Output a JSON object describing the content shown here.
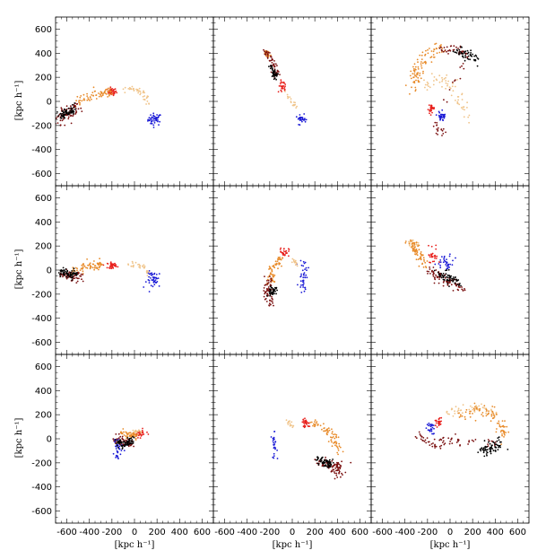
{
  "figure": {
    "xlabel": "[kpc h⁻¹]",
    "ylabel": "[kpc h⁻¹]",
    "xlim": [
      -700,
      700
    ],
    "ylim": [
      -700,
      700
    ],
    "xticks": [
      -600,
      -400,
      -200,
      0,
      200,
      400,
      600
    ],
    "yticks": [
      -600,
      -400,
      -200,
      0,
      200,
      400,
      600
    ],
    "rows": 3,
    "cols": 3
  },
  "chart_data": {
    "type": "scatter",
    "xlabel": "[kpc h⁻¹]",
    "ylabel": "[kpc h⁻¹]",
    "xlim": [
      -700,
      700
    ],
    "ylim": [
      -700,
      700
    ],
    "grid": false,
    "colors": {
      "blue": "#1a1ad6",
      "red": "#e8201c",
      "orange": "#e88b2a",
      "peach": "#f0c48a",
      "dark_red": "#7a1010",
      "black": "#000000"
    },
    "panels": [
      {
        "row": 0,
        "col": 0,
        "clusters": [
          {
            "color": "blue",
            "cx": 180,
            "cy": -150,
            "sx": 30,
            "sy": 25,
            "n": 45
          },
          {
            "color": "red",
            "cx": -200,
            "cy": 80,
            "sx": 20,
            "sy": 15,
            "n": 40
          },
          {
            "color": "peach",
            "path": [
              [
                -100,
                100
              ],
              [
                0,
                110
              ],
              [
                80,
                60
              ],
              [
                130,
                -30
              ]
            ],
            "spread": 12,
            "n": 45
          },
          {
            "color": "orange",
            "path": [
              [
                -500,
                0
              ],
              [
                -400,
                40
              ],
              [
                -300,
                60
              ],
              [
                -200,
                80
              ]
            ],
            "spread": 18,
            "n": 70
          },
          {
            "color": "dark_red",
            "path": [
              [
                -680,
                -160
              ],
              [
                -620,
                -120
              ],
              [
                -560,
                -80
              ],
              [
                -500,
                -40
              ]
            ],
            "spread": 25,
            "n": 70
          },
          {
            "color": "black",
            "path": [
              [
                -650,
                -110
              ],
              [
                -600,
                -90
              ],
              [
                -540,
                -70
              ]
            ],
            "spread": 20,
            "n": 60
          }
        ]
      },
      {
        "row": 0,
        "col": 1,
        "clusters": [
          {
            "color": "blue",
            "cx": 80,
            "cy": -150,
            "sx": 22,
            "sy": 15,
            "n": 30
          },
          {
            "color": "red",
            "cx": -90,
            "cy": 130,
            "sx": 18,
            "sy": 20,
            "n": 25
          },
          {
            "color": "peach",
            "path": [
              [
                -60,
                80
              ],
              [
                0,
                0
              ],
              [
                40,
                -60
              ]
            ],
            "spread": 10,
            "n": 20
          },
          {
            "color": "orange",
            "path": [
              [
                -240,
                420
              ],
              [
                -210,
                380
              ]
            ],
            "spread": 10,
            "n": 25
          },
          {
            "color": "dark_red",
            "path": [
              [
                -230,
                410
              ],
              [
                -180,
                320
              ],
              [
                -140,
                220
              ]
            ],
            "spread": 15,
            "n": 60
          },
          {
            "color": "black",
            "path": [
              [
                -190,
                300
              ],
              [
                -170,
                240
              ],
              [
                -150,
                200
              ]
            ],
            "spread": 12,
            "n": 40
          }
        ]
      },
      {
        "row": 0,
        "col": 2,
        "clusters": [
          {
            "color": "blue",
            "cx": -70,
            "cy": -120,
            "sx": 18,
            "sy": 22,
            "n": 35
          },
          {
            "color": "red",
            "cx": -170,
            "cy": -60,
            "sx": 15,
            "sy": 18,
            "n": 30
          },
          {
            "color": "peach",
            "path": [
              [
                -250,
                100
              ],
              [
                -100,
                200
              ],
              [
                50,
                120
              ],
              [
                150,
                -150
              ]
            ],
            "spread": 25,
            "n": 60
          },
          {
            "color": "orange",
            "path": [
              [
                -330,
                100
              ],
              [
                -300,
                250
              ],
              [
                -200,
                380
              ],
              [
                -100,
                450
              ]
            ],
            "spread": 30,
            "n": 90
          },
          {
            "color": "dark_red",
            "path": [
              [
                -100,
                430
              ],
              [
                50,
                430
              ],
              [
                150,
                380
              ],
              [
                -150,
                -180
              ],
              [
                -50,
                -270
              ]
            ],
            "spread": 18,
            "n": 70
          },
          {
            "color": "black",
            "path": [
              [
                50,
                420
              ],
              [
                150,
                380
              ],
              [
                250,
                350
              ]
            ],
            "spread": 25,
            "n": 50
          }
        ]
      },
      {
        "row": 1,
        "col": 0,
        "clusters": [
          {
            "color": "blue",
            "cx": 180,
            "cy": -80,
            "sx": 35,
            "sy": 35,
            "n": 45
          },
          {
            "color": "red",
            "cx": -200,
            "cy": 40,
            "sx": 20,
            "sy": 12,
            "n": 35
          },
          {
            "color": "peach",
            "path": [
              [
                -50,
                50
              ],
              [
                50,
                40
              ],
              [
                130,
                -20
              ]
            ],
            "spread": 12,
            "n": 30
          },
          {
            "color": "orange",
            "path": [
              [
                -550,
                0
              ],
              [
                -400,
                30
              ],
              [
                -300,
                40
              ]
            ],
            "spread": 18,
            "n": 70
          },
          {
            "color": "dark_red",
            "path": [
              [
                -650,
                -30
              ],
              [
                -560,
                -60
              ],
              [
                -480,
                -50
              ]
            ],
            "spread": 20,
            "n": 60
          },
          {
            "color": "black",
            "path": [
              [
                -650,
                -20
              ],
              [
                -580,
                -40
              ],
              [
                -520,
                -40
              ]
            ],
            "spread": 18,
            "n": 60
          }
        ]
      },
      {
        "row": 1,
        "col": 1,
        "clusters": [
          {
            "color": "blue",
            "cx": 100,
            "cy": -40,
            "sx": 20,
            "sy": 70,
            "n": 40
          },
          {
            "color": "red",
            "cx": -70,
            "cy": 150,
            "sx": 20,
            "sy": 18,
            "n": 25
          },
          {
            "color": "peach",
            "path": [
              [
                0,
                100
              ],
              [
                40,
                40
              ]
            ],
            "spread": 10,
            "n": 15
          },
          {
            "color": "orange",
            "path": [
              [
                -110,
                100
              ],
              [
                -180,
                0
              ],
              [
                -200,
                -100
              ]
            ],
            "spread": 18,
            "n": 60
          },
          {
            "color": "dark_red",
            "path": [
              [
                -200,
                -80
              ],
              [
                -220,
                -200
              ],
              [
                -190,
                -280
              ]
            ],
            "spread": 18,
            "n": 60
          },
          {
            "color": "black",
            "path": [
              [
                -200,
                -200
              ],
              [
                -170,
                -170
              ],
              [
                -140,
                -160
              ]
            ],
            "spread": 15,
            "n": 40
          }
        ]
      },
      {
        "row": 1,
        "col": 2,
        "clusters": [
          {
            "color": "blue",
            "cx": -40,
            "cy": 60,
            "sx": 35,
            "sy": 30,
            "n": 35
          },
          {
            "color": "red",
            "cx": -150,
            "cy": 120,
            "sx": 25,
            "sy": 30,
            "n": 30
          },
          {
            "color": "peach",
            "path": [
              [
                -350,
                240
              ],
              [
                -300,
                200
              ]
            ],
            "spread": 15,
            "n": 20
          },
          {
            "color": "orange",
            "path": [
              [
                -350,
                230
              ],
              [
                -280,
                150
              ],
              [
                -220,
                50
              ]
            ],
            "spread": 22,
            "n": 70
          },
          {
            "color": "dark_red",
            "path": [
              [
                -200,
                0
              ],
              [
                -50,
                -80
              ],
              [
                100,
                -140
              ]
            ],
            "spread": 25,
            "n": 80
          },
          {
            "color": "black",
            "path": [
              [
                -100,
                -30
              ],
              [
                0,
                -70
              ],
              [
                80,
                -100
              ]
            ],
            "spread": 20,
            "n": 60
          }
        ]
      },
      {
        "row": 2,
        "col": 0,
        "clusters": [
          {
            "color": "blue",
            "cx": -150,
            "cy": -80,
            "sx": 25,
            "sy": 40,
            "n": 40
          },
          {
            "color": "red",
            "cx": 50,
            "cy": 40,
            "sx": 25,
            "sy": 12,
            "n": 35
          },
          {
            "color": "peach",
            "path": [
              [
                -30,
                60
              ],
              [
                50,
                60
              ]
            ],
            "spread": 10,
            "n": 15
          },
          {
            "color": "orange",
            "path": [
              [
                -100,
                40
              ],
              [
                -30,
                30
              ],
              [
                20,
                30
              ]
            ],
            "spread": 15,
            "n": 50
          },
          {
            "color": "dark_red",
            "path": [
              [
                -170,
                0
              ],
              [
                -100,
                -30
              ],
              [
                -40,
                -30
              ]
            ],
            "spread": 20,
            "n": 50
          },
          {
            "color": "black",
            "path": [
              [
                -150,
                -40
              ],
              [
                -80,
                -40
              ],
              [
                -20,
                -20
              ]
            ],
            "spread": 20,
            "n": 70
          }
        ]
      },
      {
        "row": 2,
        "col": 1,
        "clusters": [
          {
            "color": "blue",
            "cx": -160,
            "cy": -60,
            "sx": 12,
            "sy": 50,
            "n": 25
          },
          {
            "color": "red",
            "cx": 120,
            "cy": 130,
            "sx": 18,
            "sy": 18,
            "n": 30
          },
          {
            "color": "peach",
            "path": [
              [
                -40,
                150
              ],
              [
                0,
                100
              ]
            ],
            "spread": 10,
            "n": 15
          },
          {
            "color": "orange",
            "path": [
              [
                150,
                130
              ],
              [
                280,
                100
              ],
              [
                380,
                0
              ],
              [
                420,
                -100
              ]
            ],
            "spread": 22,
            "n": 70
          },
          {
            "color": "dark_red",
            "path": [
              [
                250,
                -200
              ],
              [
                350,
                -230
              ],
              [
                430,
                -230
              ],
              [
                400,
                -300
              ]
            ],
            "spread": 25,
            "n": 80
          },
          {
            "color": "black",
            "path": [
              [
                220,
                -160
              ],
              [
                300,
                -200
              ],
              [
                360,
                -210
              ]
            ],
            "spread": 18,
            "n": 60
          }
        ]
      },
      {
        "row": 2,
        "col": 2,
        "clusters": [
          {
            "color": "blue",
            "cx": -170,
            "cy": 80,
            "sx": 18,
            "sy": 25,
            "n": 25
          },
          {
            "color": "red",
            "cx": -100,
            "cy": 140,
            "sx": 20,
            "sy": 20,
            "n": 25
          },
          {
            "color": "peach",
            "path": [
              [
                -50,
                200
              ],
              [
                100,
                250
              ],
              [
                250,
                270
              ],
              [
                400,
                200
              ]
            ],
            "spread": 20,
            "n": 50
          },
          {
            "color": "orange",
            "path": [
              [
                50,
                200
              ],
              [
                300,
                240
              ],
              [
                450,
                130
              ],
              [
                480,
                0
              ]
            ],
            "spread": 28,
            "n": 80
          },
          {
            "color": "dark_red",
            "path": [
              [
                -280,
                20
              ],
              [
                -150,
                -40
              ],
              [
                0,
                -10
              ],
              [
                450,
                -40
              ]
            ],
            "spread": 20,
            "n": 70
          },
          {
            "color": "black",
            "path": [
              [
                280,
                -100
              ],
              [
                380,
                -70
              ],
              [
                460,
                -40
              ]
            ],
            "spread": 22,
            "n": 70
          }
        ]
      }
    ]
  }
}
